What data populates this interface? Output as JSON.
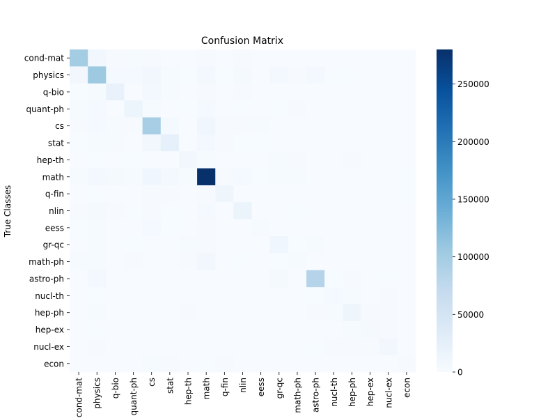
{
  "chart_data": {
    "type": "heatmap",
    "title": "Confusion Matrix",
    "ylabel": "True Classes",
    "xlabel": "",
    "x_categories": [
      "cond-mat",
      "physics",
      "q-bio",
      "quant-ph",
      "cs",
      "stat",
      "hep-th",
      "math",
      "q-fin",
      "nlin",
      "eess",
      "gr-qc",
      "math-ph",
      "astro-ph",
      "nucl-th",
      "hep-ph",
      "hep-ex",
      "nucl-ex",
      "econ"
    ],
    "y_categories": [
      "cond-mat",
      "physics",
      "q-bio",
      "quant-ph",
      "cs",
      "stat",
      "hep-th",
      "math",
      "q-fin",
      "nlin",
      "eess",
      "gr-qc",
      "math-ph",
      "astro-ph",
      "nucl-th",
      "hep-ph",
      "hep-ex",
      "nucl-ex",
      "econ"
    ],
    "matrix": [
      [
        100000,
        8000,
        2000,
        3000,
        2000,
        500,
        500,
        2000,
        300,
        2000,
        300,
        500,
        500,
        500,
        300,
        300,
        200,
        200,
        100
      ],
      [
        8000,
        105000,
        5000,
        5000,
        8000,
        3000,
        1000,
        7000,
        1000,
        4000,
        500,
        6000,
        2000,
        6000,
        1000,
        1000,
        500,
        500,
        200
      ],
      [
        1000,
        3000,
        20000,
        500,
        6000,
        3000,
        100,
        2000,
        500,
        1500,
        300,
        100,
        100,
        200,
        100,
        100,
        50,
        50,
        100
      ],
      [
        3000,
        5000,
        500,
        15000,
        3000,
        500,
        1000,
        5000,
        200,
        1000,
        500,
        1000,
        2000,
        200,
        200,
        200,
        100,
        100,
        50
      ],
      [
        2000,
        5000,
        3000,
        2000,
        97000,
        5000,
        200,
        10000,
        2000,
        2000,
        3000,
        200,
        200,
        500,
        100,
        200,
        100,
        100,
        500
      ],
      [
        1000,
        3000,
        3000,
        500,
        8000,
        24000,
        100,
        7000,
        1500,
        1000,
        1000,
        100,
        100,
        500,
        100,
        100,
        100,
        100,
        500
      ],
      [
        500,
        1000,
        100,
        1000,
        500,
        100,
        8000,
        3000,
        50,
        300,
        100,
        3000,
        2000,
        500,
        500,
        2000,
        200,
        100,
        50
      ],
      [
        3000,
        6000,
        4000,
        3000,
        10000,
        6000,
        3000,
        280000,
        2000,
        5000,
        1000,
        3000,
        3000,
        500,
        200,
        300,
        100,
        100,
        1000
      ],
      [
        300,
        1000,
        500,
        200,
        2000,
        1500,
        50,
        2000,
        12000,
        500,
        100,
        50,
        50,
        100,
        50,
        50,
        50,
        50,
        1000
      ],
      [
        2000,
        4000,
        1500,
        1000,
        2000,
        1000,
        300,
        5000,
        500,
        17000,
        300,
        300,
        1000,
        500,
        200,
        200,
        100,
        100,
        100
      ],
      [
        1000,
        3000,
        500,
        500,
        5000,
        1000,
        100,
        2000,
        100,
        300,
        3000,
        100,
        100,
        200,
        50,
        50,
        100,
        50,
        100
      ],
      [
        500,
        3000,
        100,
        1000,
        200,
        100,
        3000,
        2000,
        50,
        300,
        100,
        10000,
        1000,
        3000,
        200,
        500,
        50,
        50,
        10
      ],
      [
        3000,
        3000,
        100,
        2000,
        200,
        100,
        2000,
        8000,
        50,
        1000,
        100,
        1000,
        3000,
        200,
        500,
        500,
        50,
        50,
        10
      ],
      [
        500,
        6000,
        200,
        200,
        500,
        500,
        500,
        500,
        100,
        500,
        200,
        4000,
        200,
        85000,
        1000,
        2000,
        500,
        1000,
        10
      ],
      [
        300,
        1000,
        100,
        200,
        100,
        100,
        500,
        200,
        50,
        200,
        50,
        200,
        300,
        1000,
        5000,
        3000,
        500,
        2000,
        10
      ],
      [
        500,
        3000,
        100,
        200,
        200,
        100,
        2000,
        300,
        50,
        200,
        100,
        500,
        300,
        2000,
        3000,
        12000,
        2000,
        1500,
        10
      ],
      [
        300,
        1000,
        50,
        100,
        200,
        100,
        200,
        100,
        50,
        100,
        100,
        100,
        50,
        500,
        500,
        3000,
        4000,
        2000,
        10
      ],
      [
        300,
        1500,
        50,
        100,
        200,
        100,
        100,
        100,
        50,
        100,
        100,
        100,
        50,
        1000,
        2000,
        2000,
        2000,
        8000,
        10
      ],
      [
        200,
        500,
        200,
        50,
        2500,
        1500,
        10,
        1000,
        1500,
        100,
        200,
        10,
        10,
        10,
        10,
        10,
        10,
        10,
        2000
      ]
    ],
    "colorbar": {
      "min": 0,
      "max": 280000,
      "ticks": [
        0,
        50000,
        100000,
        150000,
        200000,
        250000
      ],
      "tick_labels": [
        "0",
        "50000",
        "100000",
        "150000",
        "200000",
        "250000"
      ],
      "colormap": "Blues"
    }
  },
  "colors": {
    "blues_stops": [
      "#f7fbff",
      "#deebf7",
      "#c6dbef",
      "#9ecae1",
      "#6baed6",
      "#4292c6",
      "#2171b5",
      "#08519c",
      "#08306b"
    ]
  }
}
